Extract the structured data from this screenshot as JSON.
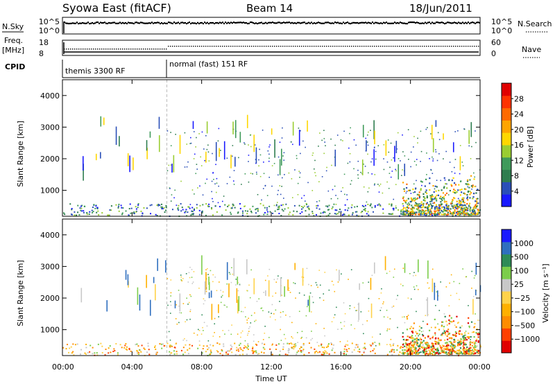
{
  "header": {
    "station": "Syowa East (fitACF)",
    "beam": "Beam 14",
    "date": "18/Jun/2011"
  },
  "top_panels": {
    "nsky_label": "N.Sky",
    "nsearch_label": "N.Search",
    "nsky_ticks": [
      "10^5",
      "10^0"
    ],
    "nsearch_ticks": [
      "10^5",
      "10^0"
    ],
    "freq_label": "Freq.",
    "freq_unit": "[MHz]",
    "freq_ticks": [
      "18",
      "8"
    ],
    "nave_label": "Nave",
    "nave_ticks": [
      "60",
      "0"
    ],
    "cpid_label": "CPID",
    "cpid_modes": [
      {
        "name": "themis 3300 RF",
        "start_hour": 0
      },
      {
        "name": "normal (fast) 151 RF",
        "start_hour": 6
      }
    ]
  },
  "colors": {
    "power_scale": [
      "#1a1aff",
      "#2a4fb8",
      "#2e7d4f",
      "#3f9a5a",
      "#9acd32",
      "#ffd700",
      "#ffa500",
      "#ff6a00",
      "#ff3300",
      "#e00000"
    ],
    "velocity_scale": [
      "#e00000",
      "#ff4000",
      "#ff8c00",
      "#ffb000",
      "#ffd24a",
      "#c8c8c8",
      "#7ccd4a",
      "#2e8b57",
      "#2f6fbf",
      "#1a1aff"
    ]
  },
  "chart_data": [
    {
      "type": "heatmap",
      "name": "power",
      "ylabel": "Slant Range [km]",
      "xlim": [
        0,
        24
      ],
      "ylim": [
        180,
        4500
      ],
      "y_ticks": [
        "1000",
        "2000",
        "3000",
        "4000"
      ],
      "colorbar_label": "Power [dB]",
      "colorbar_ticks": [
        "4",
        "8",
        "12",
        "16",
        "20",
        "24",
        "28"
      ],
      "colorbar_range": [
        0,
        32
      ]
    },
    {
      "type": "heatmap",
      "name": "velocity",
      "ylabel": "Slant Range [km]",
      "xlabel": "Time UT",
      "xlim": [
        0,
        24
      ],
      "ylim": [
        180,
        4500
      ],
      "x_ticks": [
        "00:00",
        "04:00",
        "08:00",
        "12:00",
        "16:00",
        "20:00",
        "00:00"
      ],
      "y_ticks": [
        "1000",
        "2000",
        "3000",
        "4000"
      ],
      "colorbar_label": "Velocity [m s⁻¹]",
      "colorbar_ticks": [
        "1000",
        "500",
        "100",
        "25",
        "−25",
        "−100",
        "−500",
        "−1000"
      ]
    }
  ]
}
